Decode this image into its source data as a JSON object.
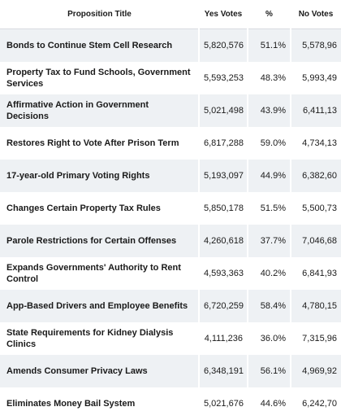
{
  "table": {
    "header": [
      "Proposition Title",
      "Yes Votes",
      "%",
      "No Votes"
    ],
    "rows": [
      [
        "Bonds to Continue Stem Cell Research",
        "5,820,576",
        "51.1%",
        "5,578,96"
      ],
      [
        "Property Tax to Fund Schools, Government Services",
        "5,593,253",
        "48.3%",
        "5,993,49"
      ],
      [
        "Affirmative Action in Government Decisions",
        "5,021,498",
        "43.9%",
        "6,411,13"
      ],
      [
        "Restores Right to Vote After Prison Term",
        "6,817,288",
        "59.0%",
        "4,734,13"
      ],
      [
        "17-year-old Primary Voting Rights",
        "5,193,097",
        "44.9%",
        "6,382,60"
      ],
      [
        "Changes Certain Property Tax Rules",
        "5,850,178",
        "51.5%",
        "5,500,73"
      ],
      [
        "Parole Restrictions for Certain Offenses",
        "4,260,618",
        "37.7%",
        "7,046,68"
      ],
      [
        "Expands Governments' Authority to Rent Control",
        "4,593,363",
        "40.2%",
        "6,841,93"
      ],
      [
        "App-Based Drivers and Employee Benefits",
        "6,720,259",
        "58.4%",
        "4,780,15"
      ],
      [
        "State Requirements for Kidney Dialysis Clinics",
        "4,111,236",
        "36.0%",
        "7,315,96"
      ],
      [
        "Amends Consumer Privacy Laws",
        "6,348,191",
        "56.1%",
        "4,969,92"
      ],
      [
        "Eliminates Money Bail System",
        "5,021,676",
        "44.6%",
        "6,242,70"
      ]
    ]
  }
}
